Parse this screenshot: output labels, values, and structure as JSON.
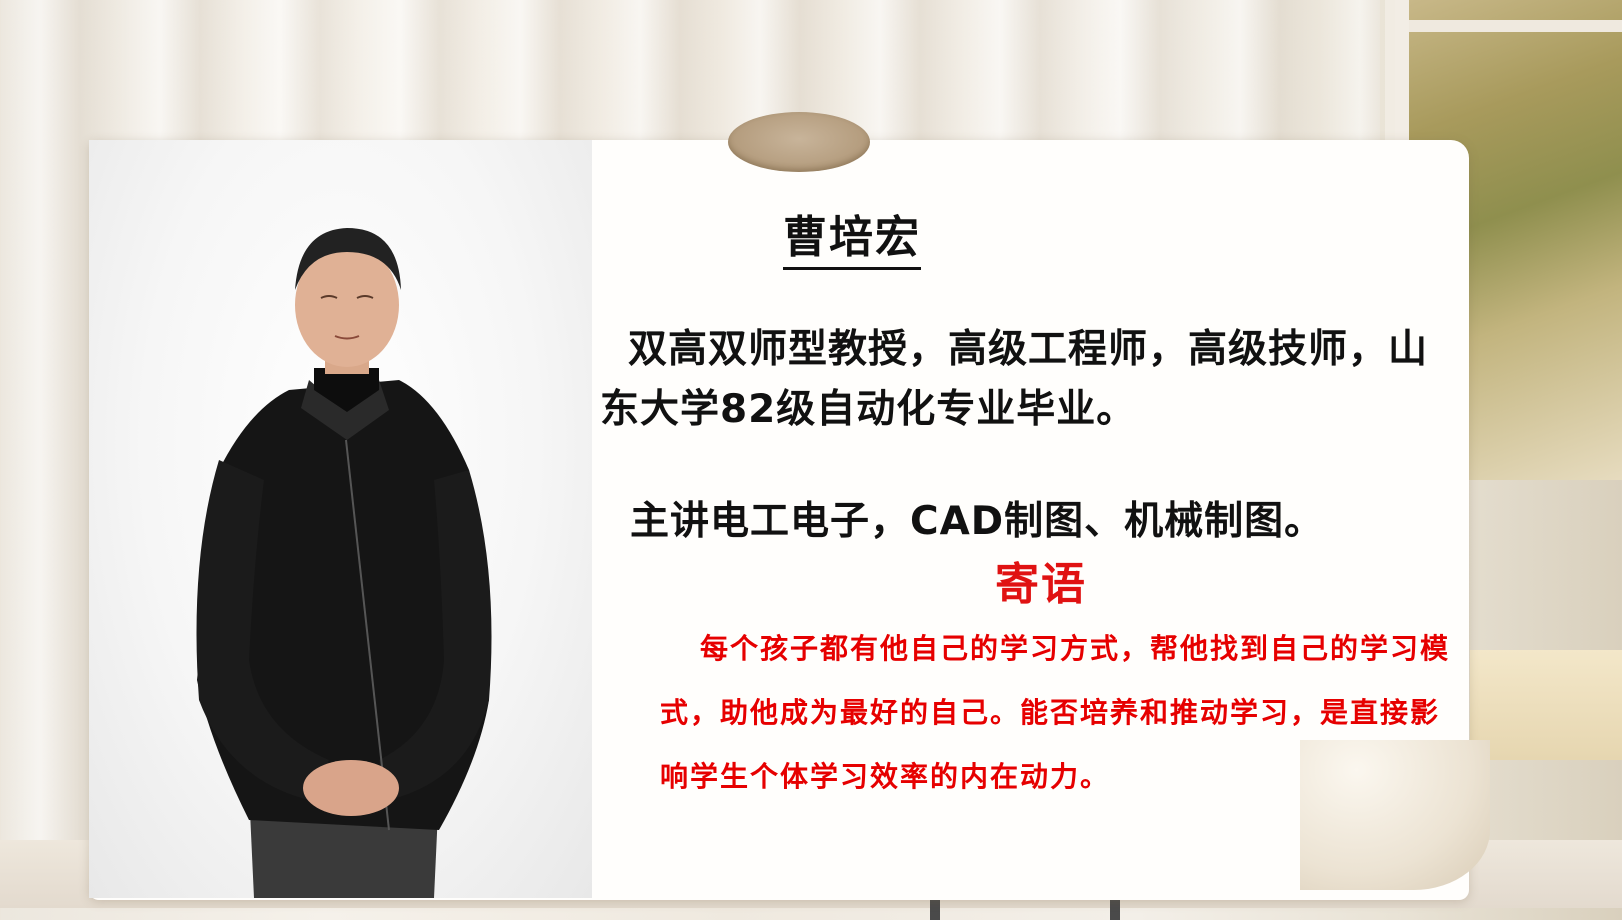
{
  "profile": {
    "name": "曹培宏",
    "bio": "双高双师型教授，高级工程师，高级技师，山东大学82级自动化专业毕业。",
    "courses": "主讲电工电子，CAD制图、机械制图。"
  },
  "motto": {
    "title": "寄语",
    "text": "每个孩子都有他自己的学习方式，帮他找到自己的学习模式，助他成为最好的自己。能否培养和推动学习，是直接影响学生个体学习效率的内在动力。"
  },
  "colors": {
    "text": "#111111",
    "accent_red": "#e60000",
    "jacket": "#151515"
  }
}
